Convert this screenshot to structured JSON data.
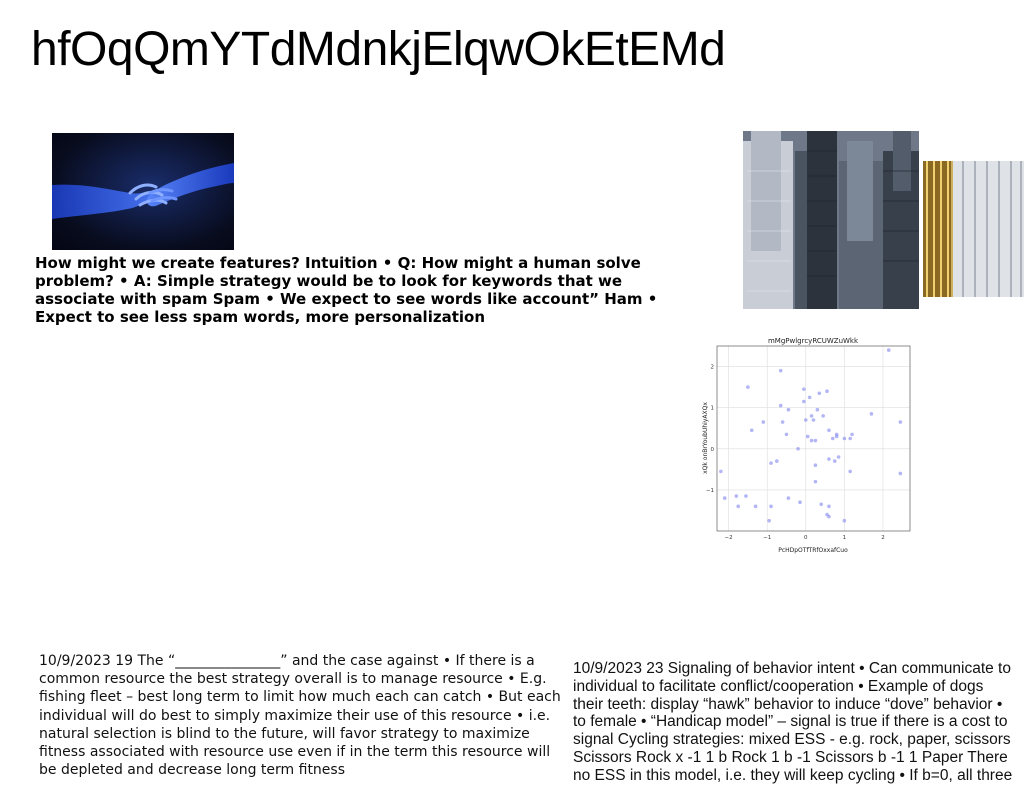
{
  "page": {
    "title": "hfOqQmYTdMdnkjElqwOkEtEMd"
  },
  "text_blocks": {
    "spam_text": "How might we create features? Intuition • Q: How might a human solve problem? • A: Simple strategy would be to look for keywords that we associate with spam Spam • We expect to see words like account” Ham • Expect to see less spam words, more personalization",
    "left_note": "10/9/2023 19 The “_______________” and the case against • If there is a common resource the best strategy overall is to manage resource • E.g. fishing fleet – best long term to limit how much each can catch • But each individual will do best to simply maximize their use of this resource • i.e. natural selection is blind to the future, will favor strategy to maximize fitness associated with resource use even if in the term this resource will be depleted and decrease long term fitness",
    "right_note_lines": [
      "10/9/2023 23 Signaling of behavior intent • Can communicate to",
      "individual to facilitate conflict/cooperation • Example of dogs",
      "their teeth: display “hawk” behavior to induce “dove” behavior •",
      "to female • “Handicap model” – signal is true if there is a cost to",
      "signal Cycling strategies: mixed ESS - e.g. rock, paper, scissors",
      "Scissors Rock x -1 1 b Rock 1 b -1 Scissors b -1 1 Paper There",
      "no ESS in this model, i.e. they will keep cycling • If b=0, all three"
    ]
  },
  "images": {
    "hands": "blue-hands-photo",
    "city": "city-skyscrapers-photo",
    "tower": "glass-tower-photo"
  },
  "chart_data": {
    "type": "scatter",
    "title": "mMgPwlgrcyRCUWZuWkk",
    "xlabel": "PcHDpOTfTRfOxxafCuo",
    "ylabel": "xQk onBrYoubUhiyAXQx",
    "xlim": [
      -2.3,
      2.7
    ],
    "ylim": [
      -2.0,
      2.5
    ],
    "xticks": [
      -2,
      -1,
      0,
      1,
      2
    ],
    "yticks": [
      -1,
      0,
      1,
      2
    ],
    "xtick_labels": [
      "−2",
      "−1",
      "0",
      "1",
      "2"
    ],
    "ytick_labels": [
      "−1",
      "0",
      "1",
      "2"
    ],
    "grid": true,
    "color": "#8a8ff0",
    "points": [
      {
        "x": 2.15,
        "y": 2.4
      },
      {
        "x": -0.65,
        "y": 1.9
      },
      {
        "x": -1.5,
        "y": 1.5
      },
      {
        "x": -0.05,
        "y": 1.45
      },
      {
        "x": 0.55,
        "y": 1.4
      },
      {
        "x": 0.35,
        "y": 1.35
      },
      {
        "x": 0.1,
        "y": 1.25
      },
      {
        "x": -0.05,
        "y": 1.15
      },
      {
        "x": -0.65,
        "y": 1.05
      },
      {
        "x": -0.45,
        "y": 0.95
      },
      {
        "x": 0.3,
        "y": 0.95
      },
      {
        "x": 0.15,
        "y": 0.8
      },
      {
        "x": 0.45,
        "y": 0.8
      },
      {
        "x": 1.7,
        "y": 0.85
      },
      {
        "x": -1.1,
        "y": 0.65
      },
      {
        "x": -0.6,
        "y": 0.65
      },
      {
        "x": 0.2,
        "y": 0.7
      },
      {
        "x": 2.45,
        "y": 0.65
      },
      {
        "x": 0.0,
        "y": 0.7
      },
      {
        "x": -1.4,
        "y": 0.45
      },
      {
        "x": -0.5,
        "y": 0.35
      },
      {
        "x": 0.6,
        "y": 0.45
      },
      {
        "x": 0.8,
        "y": 0.35
      },
      {
        "x": 0.05,
        "y": 0.3
      },
      {
        "x": 0.7,
        "y": 0.25
      },
      {
        "x": 0.8,
        "y": 0.3
      },
      {
        "x": 1.0,
        "y": 0.25
      },
      {
        "x": 1.2,
        "y": 0.35
      },
      {
        "x": 1.15,
        "y": 0.25
      },
      {
        "x": 0.15,
        "y": 0.2
      },
      {
        "x": 0.25,
        "y": 0.2
      },
      {
        "x": -0.2,
        "y": 0.0
      },
      {
        "x": 0.6,
        "y": -0.25
      },
      {
        "x": 0.85,
        "y": -0.2
      },
      {
        "x": -0.9,
        "y": -0.35
      },
      {
        "x": -0.75,
        "y": -0.3
      },
      {
        "x": 0.25,
        "y": -0.4
      },
      {
        "x": 0.75,
        "y": -0.3
      },
      {
        "x": -2.2,
        "y": -0.55
      },
      {
        "x": 1.15,
        "y": -0.55
      },
      {
        "x": 2.45,
        "y": -0.6
      },
      {
        "x": 0.25,
        "y": -0.8
      },
      {
        "x": -2.1,
        "y": -1.2
      },
      {
        "x": -1.8,
        "y": -1.15
      },
      {
        "x": -1.55,
        "y": -1.15
      },
      {
        "x": -0.45,
        "y": -1.2
      },
      {
        "x": -0.15,
        "y": -1.3
      },
      {
        "x": -1.75,
        "y": -1.4
      },
      {
        "x": -1.3,
        "y": -1.4
      },
      {
        "x": -0.9,
        "y": -1.4
      },
      {
        "x": 0.4,
        "y": -1.35
      },
      {
        "x": 0.6,
        "y": -1.4
      },
      {
        "x": 0.55,
        "y": -1.6
      },
      {
        "x": 0.6,
        "y": -1.65
      },
      {
        "x": -0.95,
        "y": -1.75
      },
      {
        "x": 1.0,
        "y": -1.75
      }
    ]
  }
}
